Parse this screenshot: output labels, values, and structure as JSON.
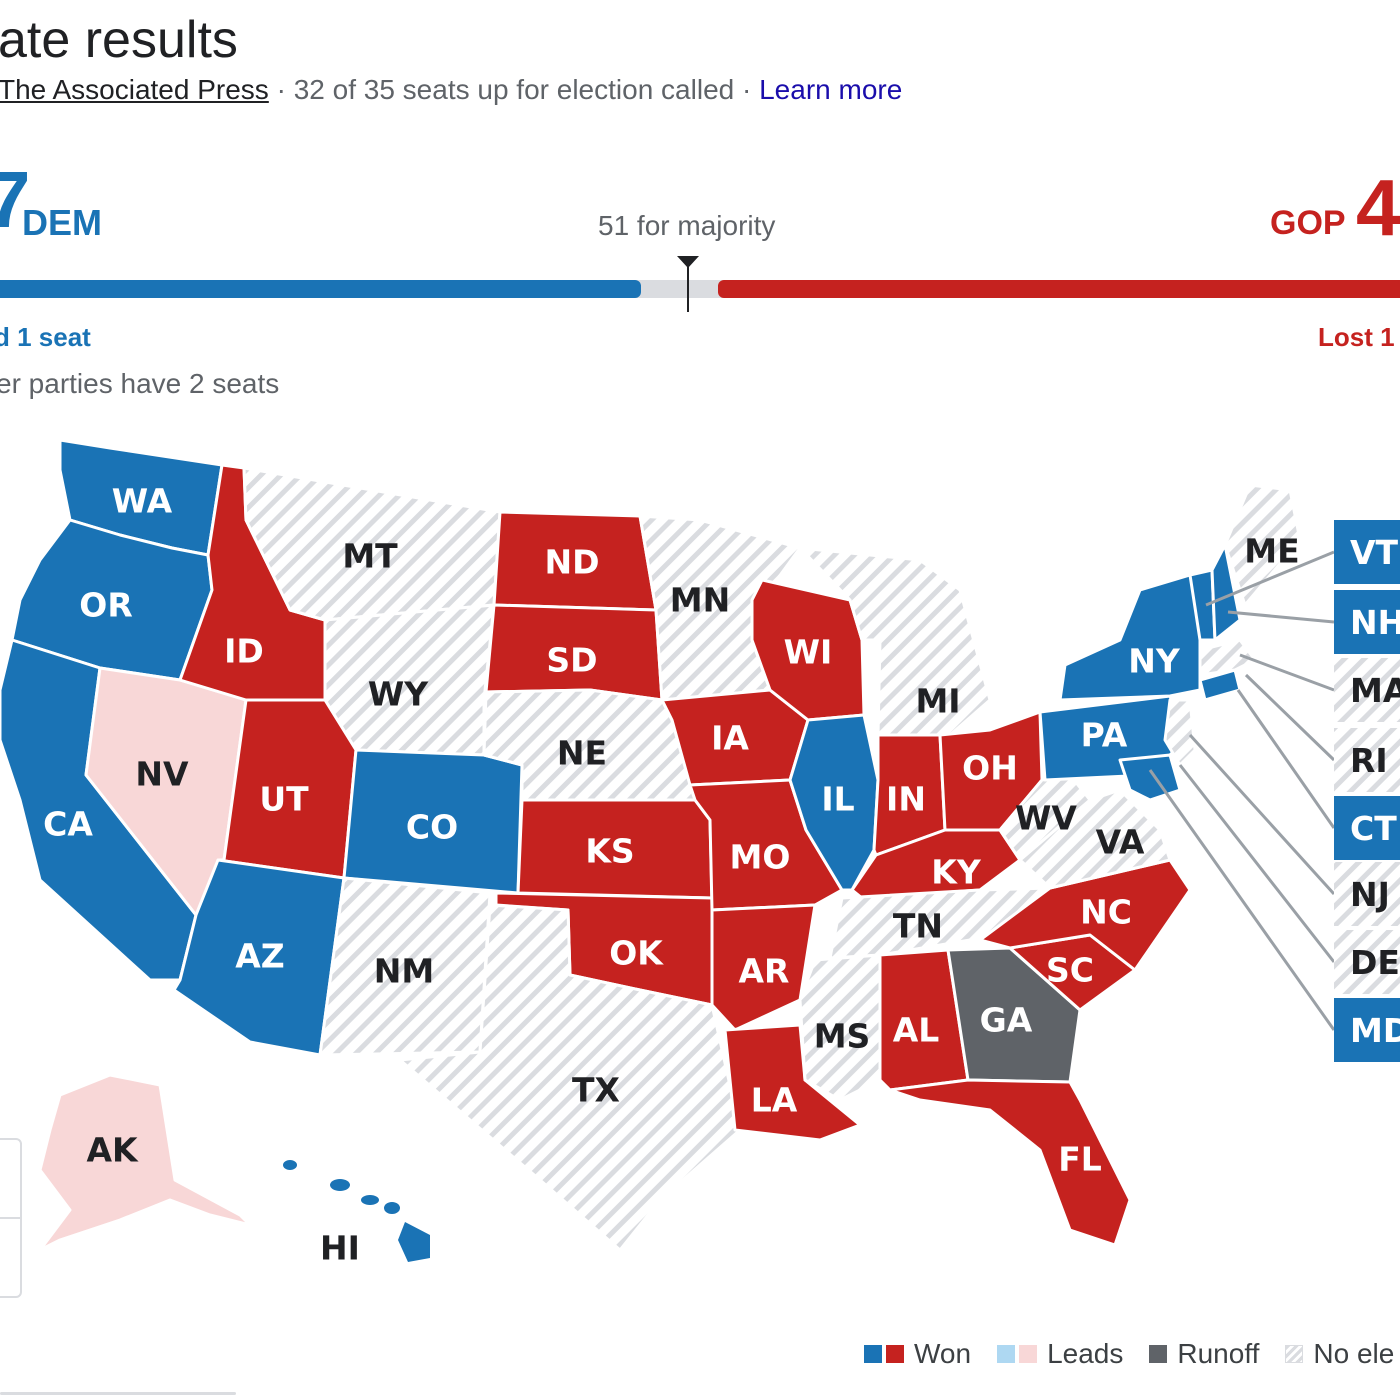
{
  "header": {
    "title": "ate results",
    "source_link": "The Associated Press",
    "source_sep": " · ",
    "called_text": "32 of 35 seats up for election called",
    "learn_more_sep": " · ",
    "learn_more": "Learn more"
  },
  "tally": {
    "dem_count": "7",
    "dem_label": "DEM",
    "majority_label": "51 for majority",
    "gop_label": "GOP",
    "gop_count": "4",
    "dem_change": "d 1 seat",
    "gop_change": "Lost 1",
    "other_parties": "er parties have 2 seats",
    "dem_fraction_of_bar": 0.458,
    "gop_fraction_of_bar": 0.487
  },
  "colors": {
    "dem": "#1a73b5",
    "gop": "#c5221f",
    "dem_leads": "#aed8f2",
    "gop_leads": "#f8d7d7",
    "runoff": "#5f6368",
    "no_election": "#dadce0"
  },
  "map": {
    "states": {
      "WA": "dem",
      "OR": "dem",
      "CA": "dem",
      "NV": "gop_leads",
      "ID": "gop",
      "MT": "none",
      "WY": "none",
      "UT": "gop",
      "AZ": "dem",
      "CO": "dem",
      "NM": "none",
      "ND": "gop",
      "SD": "gop",
      "NE": "none",
      "KS": "gop",
      "OK": "gop",
      "TX": "none",
      "MN": "none",
      "IA": "gop",
      "MO": "gop",
      "AR": "gop",
      "LA": "gop",
      "WI": "gop",
      "IL": "dem",
      "MI": "none",
      "IN": "gop",
      "OH": "gop",
      "KY": "gop",
      "TN": "none",
      "MS": "none",
      "AL": "gop",
      "GA": "runoff",
      "FL": "gop",
      "SC": "gop",
      "NC": "gop",
      "VA": "none",
      "WV": "none",
      "PA": "dem",
      "NY": "dem",
      "ME": "none",
      "AK": "gop_leads",
      "HI": "dem"
    },
    "side_states": [
      {
        "label": "VT",
        "status": "dem"
      },
      {
        "label": "NH",
        "status": "dem"
      },
      {
        "label": "MA",
        "status": "none"
      },
      {
        "label": "RI",
        "status": "none"
      },
      {
        "label": "CT",
        "status": "dem"
      },
      {
        "label": "NJ",
        "status": "none"
      },
      {
        "label": "DE",
        "status": "none"
      },
      {
        "label": "MD",
        "status": "dem"
      }
    ]
  },
  "legend": {
    "won": "Won",
    "leads": "Leads",
    "runoff": "Runoff",
    "no_election": "No ele"
  }
}
